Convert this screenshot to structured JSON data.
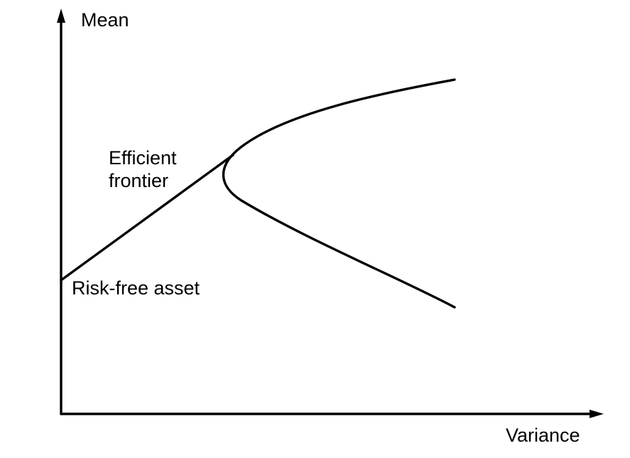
{
  "axes": {
    "y_label": "Mean",
    "x_label": "Variance"
  },
  "labels": {
    "efficient_frontier_line1": "Efficient",
    "efficient_frontier_line2": "frontier",
    "risk_free_asset": "Risk-free asset"
  },
  "colors": {
    "ink": "#000000",
    "background": "#ffffff"
  }
}
